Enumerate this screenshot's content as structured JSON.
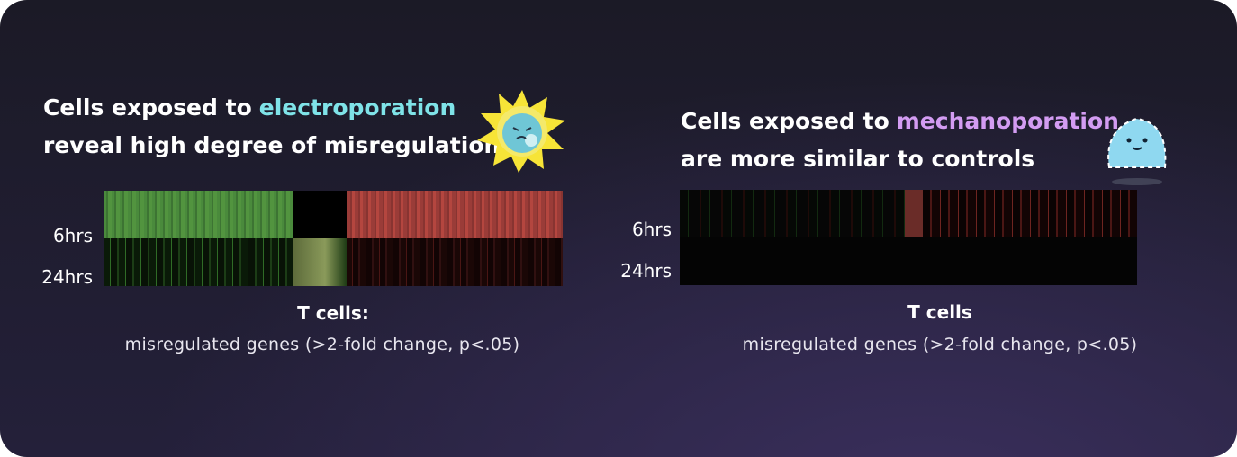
{
  "panels": [
    {
      "title_lead": "Cells exposed to",
      "title_highlight": "electroporation",
      "title_rest": "reveal high degree of misregulation",
      "row_labels": [
        "6hrs",
        "24hrs"
      ],
      "caption_title": "T cells:",
      "caption": "misregulated genes (>2-fold change, p<.05)"
    },
    {
      "title_lead": "Cells exposed to",
      "title_highlight": "mechanoporation",
      "title_rest": "are more similar to controls",
      "row_labels": [
        "6hrs",
        "24hrs"
      ],
      "caption_title": "T cells",
      "caption": "misregulated genes (>2-fold change, p<.05)"
    }
  ]
}
